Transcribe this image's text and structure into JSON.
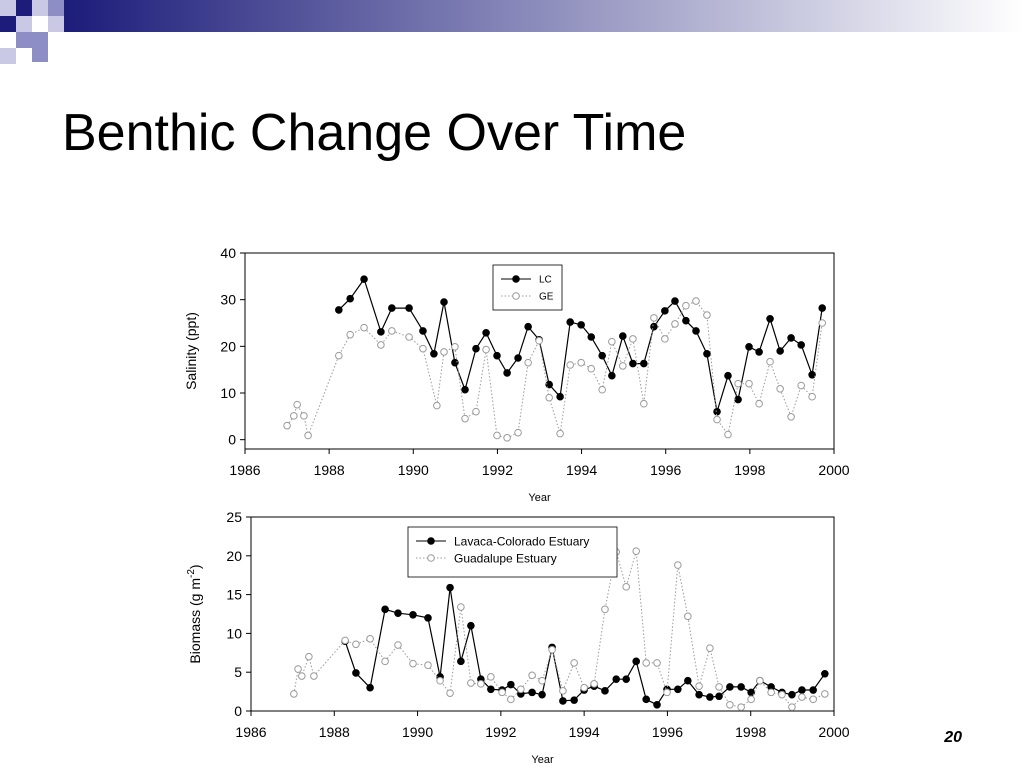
{
  "slide_title": "Benthic Change Over Time",
  "page_number": "20",
  "chart_data": [
    {
      "type": "scatter",
      "ylabel": "Salinity (ppt)",
      "xlabel": "Year",
      "xlim": [
        1986,
        2000
      ],
      "xticks": [
        1986,
        1988,
        1990,
        1992,
        1994,
        1996,
        1998,
        2000
      ],
      "ylim": [
        -2,
        40
      ],
      "yticks": [
        0,
        10,
        20,
        30,
        40
      ],
      "grid": false,
      "legend": "top-center",
      "series": [
        {
          "name": "LC",
          "color": "#000000",
          "marker": "filled",
          "line": "solid",
          "x": [
            1988.23,
            1988.5,
            1988.83,
            1989.23,
            1989.49,
            1989.9,
            1990.23,
            1990.49,
            1990.73,
            1990.99,
            1991.23,
            1991.49,
            1991.73,
            1991.99,
            1992.23,
            1992.49,
            1992.73,
            1992.99,
            1993.23,
            1993.49,
            1993.73,
            1993.99,
            1994.23,
            1994.49,
            1994.72,
            1994.98,
            1995.22,
            1995.48,
            1995.72,
            1995.98,
            1996.22,
            1996.48,
            1996.72,
            1996.98,
            1997.22,
            1997.48,
            1997.72,
            1997.98,
            1998.22,
            1998.48,
            1998.72,
            1998.98,
            1999.22,
            1999.48,
            1999.72
          ],
          "values": [
            27.8,
            30.2,
            34.4,
            23.1,
            28.2,
            28.2,
            23.3,
            18.4,
            29.5,
            16.5,
            10.7,
            19.5,
            22.9,
            18.0,
            14.3,
            17.5,
            24.2,
            21.4,
            11.8,
            9.2,
            25.2,
            24.6,
            22.0,
            18.0,
            13.7,
            22.2,
            16.3,
            16.3,
            24.2,
            27.6,
            29.7,
            25.5,
            23.3,
            18.4,
            6.0,
            13.7,
            8.6,
            19.9,
            18.8,
            25.9,
            19.0,
            21.8,
            20.3,
            13.9,
            28.2
          ]
        },
        {
          "name": "GE",
          "color": "#9a9a9a",
          "marker": "open",
          "line": "dotted",
          "x": [
            1987.0,
            1987.16,
            1987.24,
            1987.4,
            1987.5,
            1988.23,
            1988.5,
            1988.83,
            1989.23,
            1989.49,
            1989.9,
            1990.23,
            1990.56,
            1990.73,
            1990.99,
            1991.23,
            1991.49,
            1991.73,
            1991.99,
            1992.23,
            1992.49,
            1992.73,
            1992.99,
            1993.23,
            1993.49,
            1993.73,
            1993.99,
            1994.23,
            1994.49,
            1994.72,
            1994.98,
            1995.22,
            1995.48,
            1995.72,
            1995.98,
            1996.22,
            1996.48,
            1996.72,
            1996.98,
            1997.22,
            1997.48,
            1997.72,
            1997.98,
            1998.22,
            1998.48,
            1998.72,
            1998.98,
            1999.22,
            1999.48,
            1999.72
          ],
          "values": [
            3.0,
            5.1,
            7.5,
            5.1,
            0.9,
            18.0,
            22.5,
            24.0,
            20.3,
            23.3,
            22.0,
            19.5,
            7.3,
            18.8,
            19.9,
            4.5,
            6.0,
            19.3,
            0.9,
            0.4,
            1.5,
            16.5,
            21.2,
            9.0,
            1.3,
            16.0,
            16.5,
            15.2,
            10.7,
            21.0,
            15.8,
            21.6,
            7.7,
            26.1,
            21.6,
            24.8,
            28.7,
            29.7,
            26.7,
            4.3,
            1.1,
            12.0,
            12.0,
            7.7,
            16.7,
            10.9,
            4.9,
            11.6,
            9.2,
            25.0
          ]
        }
      ]
    },
    {
      "type": "scatter",
      "ylabel": [
        "Biomass (g m",
        "-2",
        ")"
      ],
      "xlabel": "Year",
      "xlim": [
        1986,
        2000
      ],
      "xticks": [
        1986,
        1988,
        1990,
        1992,
        1994,
        1996,
        1998,
        2000
      ],
      "ylim": [
        0,
        25
      ],
      "yticks": [
        0,
        5,
        10,
        15,
        20,
        25
      ],
      "grid": false,
      "legend": "top-center",
      "series": [
        {
          "name": "Lavaca-Colorado Estuary",
          "color": "#000000",
          "marker": "filled",
          "line": "solid",
          "x": [
            1988.26,
            1988.52,
            1988.86,
            1989.22,
            1989.53,
            1989.89,
            1990.25,
            1990.54,
            1990.78,
            1991.04,
            1991.28,
            1991.52,
            1991.76,
            1992.03,
            1992.24,
            1992.48,
            1992.75,
            1992.99,
            1993.23,
            1993.49,
            1993.76,
            1994.0,
            1994.24,
            1994.5,
            1994.77,
            1995.01,
            1995.25,
            1995.49,
            1995.75,
            1995.99,
            1996.25,
            1996.49,
            1996.76,
            1997.02,
            1997.24,
            1997.5,
            1997.77,
            1998.01,
            1998.22,
            1998.49,
            1998.75,
            1998.99,
            1999.23,
            1999.5,
            1999.78
          ],
          "values": [
            9.0,
            4.9,
            3.0,
            13.1,
            12.6,
            12.4,
            12.0,
            4.4,
            15.9,
            6.4,
            11.0,
            4.1,
            2.8,
            2.7,
            3.4,
            2.2,
            2.4,
            2.1,
            8.2,
            1.3,
            1.4,
            2.7,
            3.2,
            2.6,
            4.1,
            4.1,
            6.4,
            1.5,
            0.8,
            2.8,
            2.8,
            3.9,
            2.1,
            1.8,
            1.9,
            3.1,
            3.1,
            2.4,
            3.9,
            3.1,
            2.4,
            2.1,
            2.7,
            2.7,
            4.8
          ]
        },
        {
          "name": "Guadalupe Estuary",
          "color": "#9a9a9a",
          "marker": "open",
          "line": "dotted",
          "x": [
            1987.03,
            1987.13,
            1987.22,
            1987.39,
            1987.51,
            1988.26,
            1988.52,
            1988.86,
            1989.22,
            1989.53,
            1989.89,
            1990.25,
            1990.54,
            1990.78,
            1991.04,
            1991.28,
            1991.52,
            1991.76,
            1992.03,
            1992.24,
            1992.48,
            1992.75,
            1992.99,
            1993.23,
            1993.49,
            1993.76,
            1994.0,
            1994.24,
            1994.5,
            1994.77,
            1995.01,
            1995.25,
            1995.49,
            1995.75,
            1995.99,
            1996.25,
            1996.49,
            1996.76,
            1997.02,
            1997.24,
            1997.5,
            1997.77,
            1998.01,
            1998.22,
            1998.49,
            1998.75,
            1998.99,
            1999.23,
            1999.5,
            1999.78
          ],
          "values": [
            2.2,
            5.4,
            4.5,
            7.0,
            4.5,
            9.1,
            8.6,
            9.3,
            6.4,
            8.5,
            6.1,
            5.9,
            3.9,
            2.3,
            13.4,
            3.6,
            3.5,
            4.4,
            2.4,
            1.5,
            2.8,
            4.6,
            3.9,
            7.9,
            2.6,
            6.2,
            3.0,
            3.5,
            13.1,
            20.5,
            16.0,
            20.6,
            6.2,
            6.2,
            2.4,
            18.8,
            12.2,
            3.2,
            8.1,
            3.1,
            0.8,
            0.5,
            1.5,
            3.9,
            2.4,
            2.1,
            0.5,
            1.8,
            1.5,
            2.2
          ]
        }
      ]
    }
  ]
}
